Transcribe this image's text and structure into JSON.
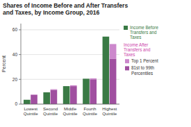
{
  "chart_data": {
    "type": "bar",
    "title": "Shares of Income Before and After Transfers\nand Taxes, by Income Group, 2016",
    "ylabel": "Percent",
    "categories": [
      "Lowest\nQuintile",
      "Second\nQuintile",
      "Middle\nQuintile",
      "Fourth\nQuintile",
      "Highest\nQuintile"
    ],
    "series": [
      {
        "name": "Income Before\nTransfers and\nTaxes",
        "color": "#3a7a45",
        "values": [
          3.5,
          9.5,
          14.5,
          20.5,
          54.5
        ]
      },
      {
        "name": "81st to 99th\nPercentiles",
        "color": "#a050a0",
        "values": [
          7.5,
          11.5,
          14.5,
          20.0,
          36.5
        ],
        "stacked": true
      },
      {
        "name": "Top 1 Percent",
        "color": "#cc88cc",
        "values": [
          0.3,
          0.5,
          0.7,
          0.8,
          12.0
        ],
        "stacked": true
      }
    ],
    "annotations": [
      {
        "text": "Income After\nTransfers and\nTaxes",
        "color": "#cc44aa"
      }
    ],
    "ylim": [
      0,
      65
    ],
    "yticks": [
      0,
      20,
      40,
      60
    ],
    "grid": true,
    "legend": "right"
  }
}
